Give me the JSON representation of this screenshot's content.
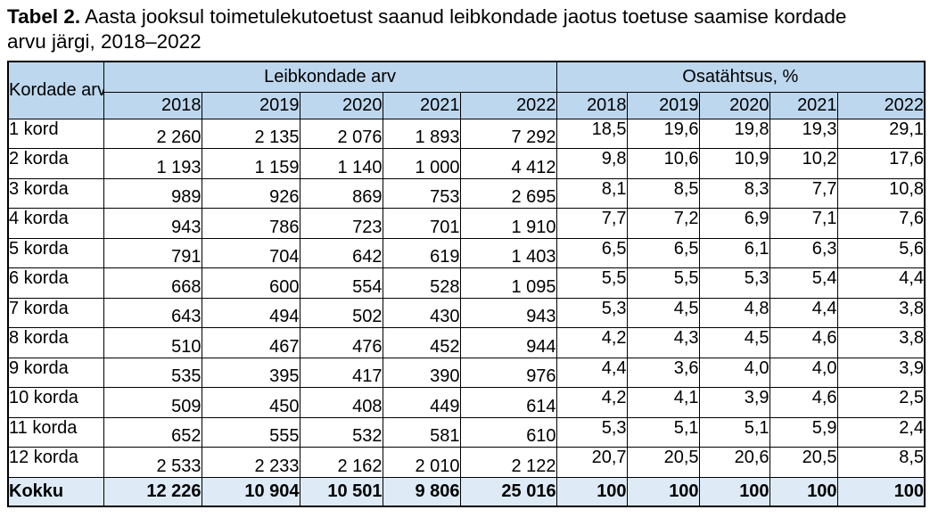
{
  "title": {
    "label": "Tabel 2.",
    "text": " Aasta jooksul toimetulekutoetust saanud leibkondade jaotus toetuse saamise kordade arvu järgi, 2018–2022"
  },
  "table": {
    "corner_header": "Kordade arv",
    "group_headers": [
      "Leibkondade arv",
      "Osatähtsus, %"
    ],
    "years": [
      "2018",
      "2019",
      "2020",
      "2021",
      "2022"
    ],
    "rows": [
      {
        "label": "1 kord",
        "counts": [
          "2 260",
          "2 135",
          "2 076",
          "1 893",
          "7 292"
        ],
        "shares": [
          "18,5",
          "19,6",
          "19,8",
          "19,3",
          "29,1"
        ]
      },
      {
        "label": "2 korda",
        "counts": [
          "1 193",
          "1 159",
          "1 140",
          "1 000",
          "4 412"
        ],
        "shares": [
          "9,8",
          "10,6",
          "10,9",
          "10,2",
          "17,6"
        ]
      },
      {
        "label": "3 korda",
        "counts": [
          "989",
          "926",
          "869",
          "753",
          "2 695"
        ],
        "shares": [
          "8,1",
          "8,5",
          "8,3",
          "7,7",
          "10,8"
        ]
      },
      {
        "label": "4 korda",
        "counts": [
          "943",
          "786",
          "723",
          "701",
          "1 910"
        ],
        "shares": [
          "7,7",
          "7,2",
          "6,9",
          "7,1",
          "7,6"
        ]
      },
      {
        "label": "5 korda",
        "counts": [
          "791",
          "704",
          "642",
          "619",
          "1 403"
        ],
        "shares": [
          "6,5",
          "6,5",
          "6,1",
          "6,3",
          "5,6"
        ]
      },
      {
        "label": "6 korda",
        "counts": [
          "668",
          "600",
          "554",
          "528",
          "1 095"
        ],
        "shares": [
          "5,5",
          "5,5",
          "5,3",
          "5,4",
          "4,4"
        ]
      },
      {
        "label": "7 korda",
        "counts": [
          "643",
          "494",
          "502",
          "430",
          "943"
        ],
        "shares": [
          "5,3",
          "4,5",
          "4,8",
          "4,4",
          "3,8"
        ]
      },
      {
        "label": "8 korda",
        "counts": [
          "510",
          "467",
          "476",
          "452",
          "944"
        ],
        "shares": [
          "4,2",
          "4,3",
          "4,5",
          "4,6",
          "3,8"
        ]
      },
      {
        "label": "9 korda",
        "counts": [
          "535",
          "395",
          "417",
          "390",
          "976"
        ],
        "shares": [
          "4,4",
          "3,6",
          "4,0",
          "4,0",
          "3,9"
        ]
      },
      {
        "label": "10 korda",
        "counts": [
          "509",
          "450",
          "408",
          "449",
          "614"
        ],
        "shares": [
          "4,2",
          "4,1",
          "3,9",
          "4,6",
          "2,5"
        ]
      },
      {
        "label": "11 korda",
        "counts": [
          "652",
          "555",
          "532",
          "581",
          "610"
        ],
        "shares": [
          "5,3",
          "5,1",
          "5,1",
          "5,9",
          "2,4"
        ]
      },
      {
        "label": "12 korda",
        "counts": [
          "2 533",
          "2 233",
          "2 162",
          "2 010",
          "2 122"
        ],
        "shares": [
          "20,7",
          "20,5",
          "20,6",
          "20,5",
          "8,5"
        ]
      }
    ],
    "total": {
      "label": "Kokku",
      "counts": [
        "12 226",
        "10 904",
        "10 501",
        "9 806",
        "25 016"
      ],
      "shares": [
        "100",
        "100",
        "100",
        "100",
        "100"
      ]
    }
  },
  "colors": {
    "header_bg": "#BDD7EE",
    "total_bg": "#DEEAF6",
    "border": "#000000"
  }
}
